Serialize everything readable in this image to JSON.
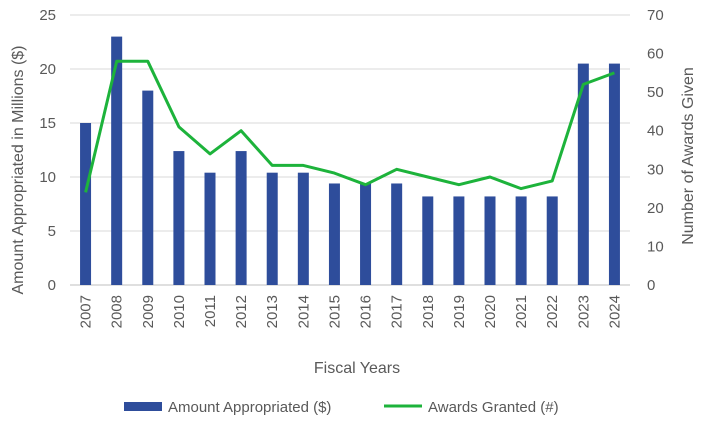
{
  "chart_data": {
    "type": "bar+line",
    "categories": [
      "2007",
      "2008",
      "2009",
      "2010",
      "2011",
      "2012",
      "2013",
      "2014",
      "2015",
      "2016",
      "2017",
      "2018",
      "2019",
      "2020",
      "2021",
      "2022",
      "2023",
      "2024"
    ],
    "series": [
      {
        "name": "Amount Appropriated ($)",
        "type": "bar",
        "axis": "left",
        "color": "#2E4D9B",
        "values": [
          15,
          23,
          18,
          12.4,
          10.4,
          12.4,
          10.4,
          10.4,
          9.4,
          9.4,
          9.4,
          8.2,
          8.2,
          8.2,
          8.2,
          8.2,
          20.5,
          20.5
        ]
      },
      {
        "name": "Awards Granted (#)",
        "type": "line",
        "axis": "right",
        "color": "#1DB33B",
        "values": [
          24,
          58,
          58,
          41,
          34,
          40,
          31,
          31,
          29,
          26,
          30,
          28,
          26,
          28,
          25,
          27,
          52,
          55
        ]
      }
    ],
    "xlabel": "Fiscal Years",
    "ylabel_left": "Amount Appropriated in Millions ($)",
    "ylabel_right": "Number of Awards Given",
    "ylim_left": [
      0,
      25
    ],
    "yticks_left": [
      "0",
      "5",
      "10",
      "15",
      "20",
      "25"
    ],
    "ylim_right": [
      0,
      70
    ],
    "yticks_right": [
      "0",
      "10",
      "20",
      "30",
      "40",
      "50",
      "60",
      "70"
    ],
    "grid": true,
    "legend_position": "bottom"
  }
}
